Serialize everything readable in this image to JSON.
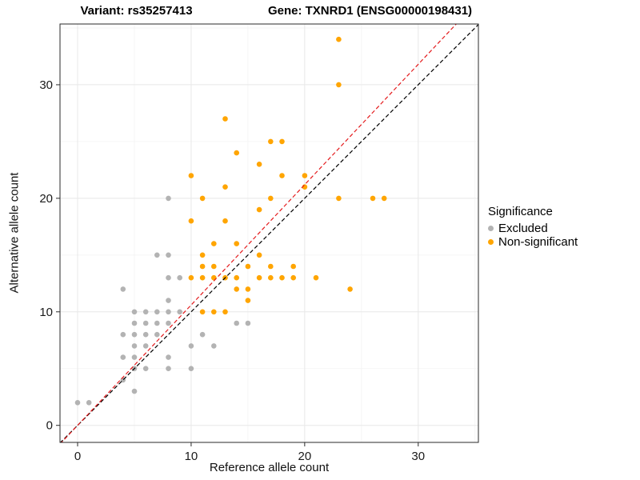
{
  "chart_data": {
    "type": "scatter",
    "title_left": "Variant: rs35257413",
    "title_right": "Gene: TXNRD1 (ENSG00000198431)",
    "xlabel": "Reference allele count",
    "ylabel": "Alternative allele count",
    "xlim": [
      -1.55,
      35.3
    ],
    "ylim": [
      -1.5,
      35.35
    ],
    "x_ticks": [
      0,
      10,
      20,
      30
    ],
    "y_ticks": [
      0,
      10,
      20,
      30
    ],
    "minor_ticks": [
      5,
      15,
      25,
      35
    ],
    "grid": true,
    "legend": {
      "title": "Significance",
      "position": "right"
    },
    "series": [
      {
        "key": "excluded",
        "name": "Excluded",
        "color": "#b3b3b3",
        "points": [
          [
            0,
            2
          ],
          [
            1,
            2
          ],
          [
            4,
            12
          ],
          [
            4,
            8
          ],
          [
            4,
            6
          ],
          [
            4,
            4
          ],
          [
            5,
            10
          ],
          [
            5,
            9
          ],
          [
            5,
            8
          ],
          [
            5,
            7
          ],
          [
            5,
            6
          ],
          [
            5,
            5
          ],
          [
            5,
            3
          ],
          [
            6,
            10
          ],
          [
            6,
            9
          ],
          [
            6,
            8
          ],
          [
            6,
            7
          ],
          [
            6,
            5
          ],
          [
            7,
            15
          ],
          [
            7,
            10
          ],
          [
            7,
            9
          ],
          [
            7,
            8
          ],
          [
            8,
            20
          ],
          [
            8,
            15
          ],
          [
            8,
            13
          ],
          [
            8,
            11
          ],
          [
            8,
            10
          ],
          [
            8,
            9
          ],
          [
            8,
            6
          ],
          [
            8,
            5
          ],
          [
            9,
            13
          ],
          [
            9,
            10
          ],
          [
            10,
            7
          ],
          [
            10,
            5
          ],
          [
            11,
            8
          ],
          [
            12,
            7
          ],
          [
            14,
            9
          ],
          [
            15,
            9
          ]
        ]
      },
      {
        "key": "non-significant",
        "name": "Non-significant",
        "color": "#ffa500",
        "points": [
          [
            10,
            22
          ],
          [
            10,
            18
          ],
          [
            10,
            13
          ],
          [
            11,
            20
          ],
          [
            11,
            15
          ],
          [
            11,
            14
          ],
          [
            11,
            13
          ],
          [
            11,
            10
          ],
          [
            12,
            16
          ],
          [
            12,
            14
          ],
          [
            12,
            13
          ],
          [
            12,
            10
          ],
          [
            13,
            27
          ],
          [
            13,
            21
          ],
          [
            13,
            18
          ],
          [
            13,
            13
          ],
          [
            13,
            10
          ],
          [
            14,
            24
          ],
          [
            14,
            16
          ],
          [
            14,
            13
          ],
          [
            14,
            12
          ],
          [
            15,
            14
          ],
          [
            15,
            12
          ],
          [
            15,
            11
          ],
          [
            16,
            23
          ],
          [
            16,
            19
          ],
          [
            16,
            15
          ],
          [
            16,
            13
          ],
          [
            17,
            25
          ],
          [
            17,
            20
          ],
          [
            17,
            14
          ],
          [
            17,
            13
          ],
          [
            18,
            25
          ],
          [
            18,
            22
          ],
          [
            18,
            13
          ],
          [
            19,
            14
          ],
          [
            19,
            13
          ],
          [
            20,
            22
          ],
          [
            20,
            21
          ],
          [
            21,
            13
          ],
          [
            23,
            34
          ],
          [
            23,
            30
          ],
          [
            23,
            20
          ],
          [
            24,
            12
          ],
          [
            26,
            20
          ],
          [
            27,
            20
          ]
        ]
      }
    ],
    "lines": [
      {
        "name": "identity",
        "slope": 1,
        "intercept": 0,
        "color": "#000000",
        "style": "dashed"
      },
      {
        "name": "regression",
        "slope": 1.06,
        "intercept": 0,
        "color": "#e41a1c",
        "style": "dashed"
      }
    ]
  }
}
